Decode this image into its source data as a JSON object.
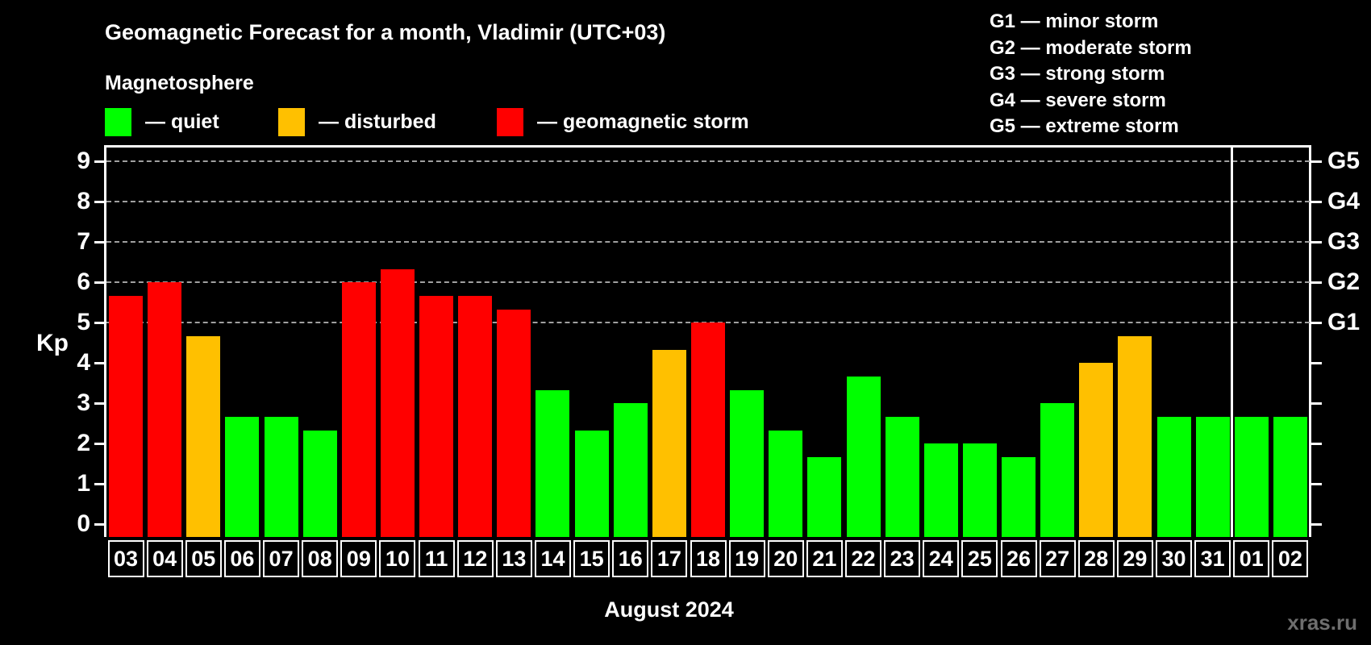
{
  "header": {
    "title": "Geomagnetic Forecast for a month, Vladimir (UTC+03)",
    "subtitle": "Magnetosphere"
  },
  "legend": {
    "items": [
      {
        "status": "quiet",
        "label": "— quiet",
        "color": "#00ff00"
      },
      {
        "status": "disturbed",
        "label": "— disturbed",
        "color": "#ffc000"
      },
      {
        "status": "storm",
        "label": "— geomagnetic storm",
        "color": "#ff0000"
      }
    ]
  },
  "storm_legend": {
    "items": [
      "G1 — minor storm",
      "G2 — moderate storm",
      "G3 — strong storm",
      "G4 — severe storm",
      "G5 — extreme storm"
    ]
  },
  "chart_data": {
    "type": "bar",
    "title": "Geomagnetic Forecast for a month, Vladimir (UTC+03)",
    "subtitle": "Magnetosphere",
    "xlabel": "August 2024",
    "ylabel": "Kp",
    "ylim": [
      -0.32,
      9.34
    ],
    "yticks": [
      0,
      1,
      2,
      3,
      4,
      5,
      6,
      7,
      8,
      9
    ],
    "gridlines_at_kp": [
      5,
      6,
      7,
      8,
      9
    ],
    "grid_style": "dashed horizontal lines at storm levels only",
    "legend_position": "top-left",
    "right_axis": [
      {
        "kp": 5,
        "label": "G1"
      },
      {
        "kp": 6,
        "label": "G2"
      },
      {
        "kp": 7,
        "label": "G3"
      },
      {
        "kp": 8,
        "label": "G4"
      },
      {
        "kp": 9,
        "label": "G5"
      }
    ],
    "categories": [
      "03",
      "04",
      "05",
      "06",
      "07",
      "08",
      "09",
      "10",
      "11",
      "12",
      "13",
      "14",
      "15",
      "16",
      "17",
      "18",
      "19",
      "20",
      "21",
      "22",
      "23",
      "24",
      "25",
      "26",
      "27",
      "28",
      "29",
      "30",
      "31",
      "01",
      "02"
    ],
    "values": [
      5.67,
      6.0,
      4.67,
      2.67,
      2.67,
      2.33,
      6.0,
      6.33,
      5.67,
      5.67,
      5.33,
      3.33,
      2.33,
      3.0,
      4.33,
      5.0,
      3.33,
      2.33,
      1.67,
      3.67,
      2.67,
      2.0,
      2.0,
      1.67,
      3.0,
      4.0,
      4.67,
      2.67,
      2.67,
      2.67,
      2.67
    ],
    "statuses": [
      "storm",
      "storm",
      "disturbed",
      "quiet",
      "quiet",
      "quiet",
      "storm",
      "storm",
      "storm",
      "storm",
      "storm",
      "quiet",
      "quiet",
      "quiet",
      "disturbed",
      "storm",
      "quiet",
      "quiet",
      "quiet",
      "quiet",
      "quiet",
      "quiet",
      "quiet",
      "quiet",
      "quiet",
      "disturbed",
      "disturbed",
      "quiet",
      "quiet",
      "quiet",
      "quiet"
    ],
    "status_colors": {
      "quiet": "#00ff00",
      "disturbed": "#ffc000",
      "storm": "#ff0000"
    },
    "month_separator_after_index": 28
  },
  "footer": {
    "caption": "August 2024",
    "watermark": "xras.ru"
  }
}
